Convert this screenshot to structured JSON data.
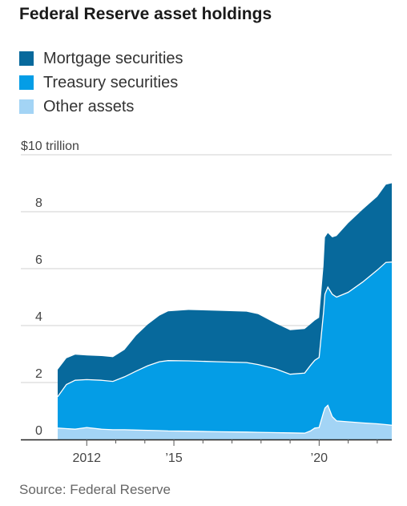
{
  "title": "Federal Reserve asset holdings",
  "source": "Source: Federal Reserve",
  "legend": [
    {
      "label": "Mortgage securities",
      "color": "#07699c"
    },
    {
      "label": "Treasury securities",
      "color": "#049de6"
    },
    {
      "label": "Other assets",
      "color": "#a3d4f5"
    }
  ],
  "chart_data": {
    "type": "area",
    "stacked": true,
    "title": "Federal Reserve asset holdings",
    "y_unit_label": "$10 trillion",
    "ylim": [
      0,
      10
    ],
    "y_ticks": [
      {
        "value": 0,
        "label": "0"
      },
      {
        "value": 2,
        "label": "2"
      },
      {
        "value": 4,
        "label": "4"
      },
      {
        "value": 6,
        "label": "6"
      },
      {
        "value": 8,
        "label": "8"
      }
    ],
    "xlim": [
      2011.0,
      2022.5
    ],
    "x_ticks": [
      {
        "value": 2012,
        "label": "2012"
      },
      {
        "value": 2015,
        "label": "’15"
      },
      {
        "value": 2020,
        "label": "’20"
      }
    ],
    "x_minor_ticks": [
      2013,
      2014,
      2016,
      2017,
      2018,
      2019,
      2021,
      2022
    ],
    "gridlines": true,
    "x": [
      2011.0,
      2011.3,
      2011.6,
      2012.0,
      2012.5,
      2012.9,
      2013.3,
      2013.7,
      2014.1,
      2014.5,
      2014.8,
      2015.5,
      2016.5,
      2017.5,
      2017.9,
      2018.5,
      2019.0,
      2019.5,
      2019.7,
      2019.85,
      2020.0,
      2020.15,
      2020.2,
      2020.3,
      2020.45,
      2020.6,
      2021.0,
      2021.5,
      2022.0,
      2022.3,
      2022.5
    ],
    "series": [
      {
        "name": "Other assets",
        "color": "#a3d4f5",
        "values": [
          0.4,
          0.38,
          0.36,
          0.42,
          0.36,
          0.34,
          0.34,
          0.33,
          0.32,
          0.31,
          0.3,
          0.29,
          0.27,
          0.26,
          0.25,
          0.24,
          0.23,
          0.22,
          0.3,
          0.4,
          0.42,
          0.95,
          1.1,
          1.2,
          0.8,
          0.65,
          0.62,
          0.58,
          0.55,
          0.52,
          0.5
        ]
      },
      {
        "name": "Treasury securities",
        "color": "#049de6",
        "values": [
          1.1,
          1.55,
          1.72,
          1.68,
          1.72,
          1.7,
          1.86,
          2.07,
          2.27,
          2.42,
          2.47,
          2.47,
          2.46,
          2.44,
          2.38,
          2.24,
          2.06,
          2.11,
          2.3,
          2.38,
          2.46,
          3.5,
          4.0,
          4.15,
          4.3,
          4.35,
          4.55,
          4.95,
          5.4,
          5.7,
          5.73
        ]
      },
      {
        "name": "Mortgage securities",
        "color": "#07699c",
        "values": [
          0.95,
          0.92,
          0.9,
          0.85,
          0.85,
          0.85,
          0.95,
          1.25,
          1.45,
          1.62,
          1.73,
          1.79,
          1.79,
          1.79,
          1.77,
          1.6,
          1.55,
          1.55,
          1.45,
          1.4,
          1.4,
          1.65,
          2.0,
          1.9,
          2.0,
          2.15,
          2.43,
          2.55,
          2.58,
          2.73,
          2.77
        ]
      }
    ]
  }
}
